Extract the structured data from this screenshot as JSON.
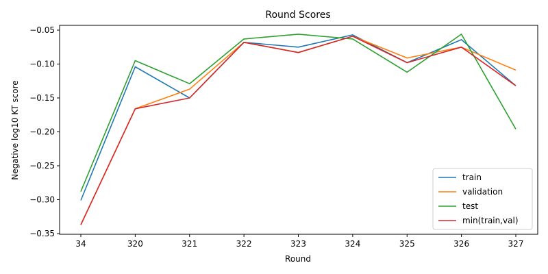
{
  "chart_data": {
    "type": "line",
    "title": "Round Scores",
    "xlabel": "Round",
    "ylabel": "Negative log10 KT score",
    "categories": [
      "34",
      "320",
      "321",
      "322",
      "323",
      "324",
      "325",
      "326",
      "327"
    ],
    "ylim": [
      -0.35,
      -0.05
    ],
    "yticks": [
      "-0.35",
      "-0.30",
      "-0.25",
      "-0.20",
      "-0.15",
      "-0.10",
      "-0.05"
    ],
    "legend_position": "bottom-right",
    "grid": false,
    "series": [
      {
        "name": "train",
        "color": "#1f77b4",
        "values": [
          -0.301,
          -0.104,
          -0.15,
          -0.068,
          -0.075,
          -0.057,
          -0.098,
          -0.064,
          -0.132
        ]
      },
      {
        "name": "validation",
        "color": "#ff7f0e",
        "values": [
          -0.337,
          -0.166,
          -0.137,
          -0.068,
          -0.083,
          -0.059,
          -0.091,
          -0.075,
          -0.109
        ]
      },
      {
        "name": "test",
        "color": "#2ca02c",
        "values": [
          -0.288,
          -0.095,
          -0.129,
          -0.063,
          -0.056,
          -0.063,
          -0.112,
          -0.056,
          -0.196
        ]
      },
      {
        "name": "min(train,val)",
        "color": "#d62728",
        "values": [
          -0.337,
          -0.166,
          -0.15,
          -0.068,
          -0.083,
          -0.059,
          -0.098,
          -0.075,
          -0.132
        ]
      }
    ]
  }
}
